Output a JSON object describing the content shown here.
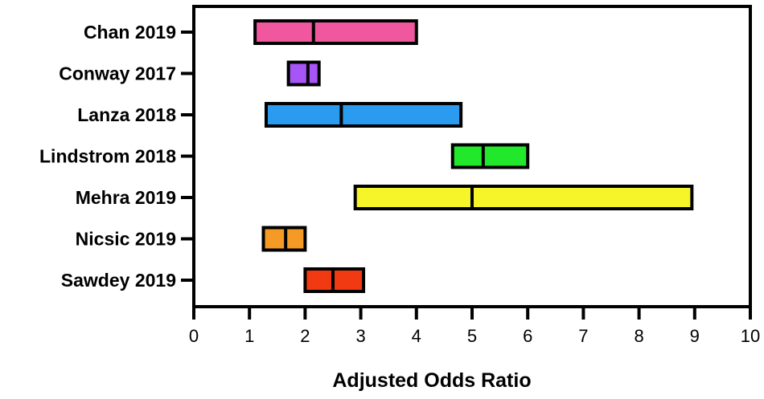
{
  "chart_data": {
    "type": "bar",
    "subtype": "floating-range",
    "title": "",
    "xlabel": "Adjusted Odds Ratio",
    "ylabel": "",
    "xlim": [
      0,
      10
    ],
    "xticks": [
      0,
      1,
      2,
      3,
      4,
      5,
      6,
      7,
      8,
      9,
      10
    ],
    "grid": false,
    "studies": [
      {
        "label": "Chan 2019",
        "low": 1.1,
        "mid": 2.15,
        "high": 4.0,
        "color": "#f0579e"
      },
      {
        "label": "Conway 2017",
        "low": 1.7,
        "mid": 2.05,
        "high": 2.25,
        "color": "#a855f7"
      },
      {
        "label": "Lanza 2018",
        "low": 1.3,
        "mid": 2.65,
        "high": 4.8,
        "color": "#2b9bf0"
      },
      {
        "label": "Lindstrom 2018",
        "low": 4.65,
        "mid": 5.2,
        "high": 6.0,
        "color": "#22e82c"
      },
      {
        "label": "Mehra 2019",
        "low": 2.9,
        "mid": 5.0,
        "high": 8.95,
        "color": "#f5f52a"
      },
      {
        "label": "Nicsic 2019",
        "low": 1.25,
        "mid": 1.65,
        "high": 2.0,
        "color": "#f59a25"
      },
      {
        "label": "Sawdey 2019",
        "low": 2.0,
        "mid": 2.5,
        "high": 3.05,
        "color": "#f23a12"
      }
    ]
  }
}
